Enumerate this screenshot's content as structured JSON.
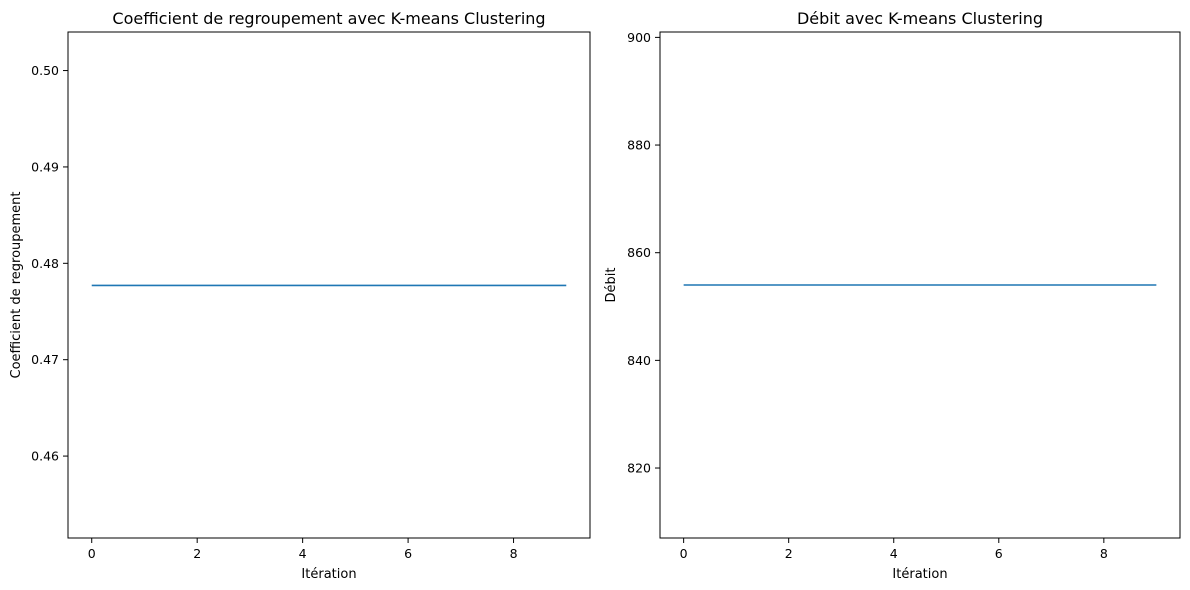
{
  "figure": {
    "line_color": "#1f77b4"
  },
  "chart_data": [
    {
      "type": "line",
      "title": "Coefficient de regroupement avec K-means Clustering",
      "xlabel": "Itération",
      "ylabel": "Coefficient de regroupement",
      "xlim": [
        -0.45,
        9.45
      ],
      "ylim": [
        0.4515,
        0.504
      ],
      "xticks": [
        0,
        2,
        4,
        6,
        8
      ],
      "xtick_labels": [
        "0",
        "2",
        "4",
        "6",
        "8"
      ],
      "yticks": [
        0.46,
        0.47,
        0.48,
        0.49,
        0.5
      ],
      "ytick_labels": [
        "0.46",
        "0.47",
        "0.48",
        "0.49",
        "0.50"
      ],
      "grid": false,
      "series": [
        {
          "x": [
            0,
            1,
            2,
            3,
            4,
            5,
            6,
            7,
            8,
            9
          ],
          "y": [
            0.4777,
            0.4777,
            0.4777,
            0.4777,
            0.4777,
            0.4777,
            0.4777,
            0.4777,
            0.4777,
            0.4777
          ]
        }
      ]
    },
    {
      "type": "line",
      "title": "Débit avec K-means Clustering",
      "xlabel": "Itération",
      "ylabel": "Débit",
      "xlim": [
        -0.45,
        9.45
      ],
      "ylim": [
        807,
        901
      ],
      "xticks": [
        0,
        2,
        4,
        6,
        8
      ],
      "xtick_labels": [
        "0",
        "2",
        "4",
        "6",
        "8"
      ],
      "yticks": [
        820,
        840,
        860,
        880,
        900
      ],
      "ytick_labels": [
        "820",
        "840",
        "860",
        "880",
        "900"
      ],
      "grid": false,
      "series": [
        {
          "x": [
            0,
            1,
            2,
            3,
            4,
            5,
            6,
            7,
            8,
            9
          ],
          "y": [
            854,
            854,
            854,
            854,
            854,
            854,
            854,
            854,
            854,
            854
          ]
        }
      ]
    }
  ]
}
